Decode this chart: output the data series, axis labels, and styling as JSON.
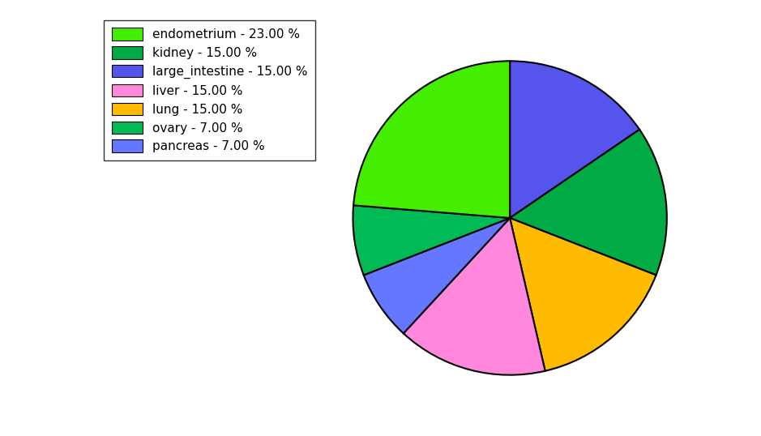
{
  "labels": [
    "endometrium",
    "kidney",
    "large_intestine",
    "liver",
    "lung",
    "ovary",
    "pancreas"
  ],
  "values": [
    23.0,
    15.0,
    15.0,
    15.0,
    15.0,
    7.0,
    7.0
  ],
  "colors": [
    "#44dd00",
    "#00aa44",
    "#5555ee",
    "#ff88dd",
    "#ffbb00",
    "#00aa44",
    "#6666ee"
  ],
  "legend_labels": [
    "endometrium - 23.00 %",
    "kidney - 15.00 %",
    "large_intestine - 15.00 %",
    "liver - 15.00 %",
    "lung - 15.00 %",
    "ovary - 7.00 %",
    "pancreas - 7.00 %"
  ],
  "figsize": [
    9.39,
    5.38
  ],
  "dpi": 100,
  "background_color": "#ffffff"
}
